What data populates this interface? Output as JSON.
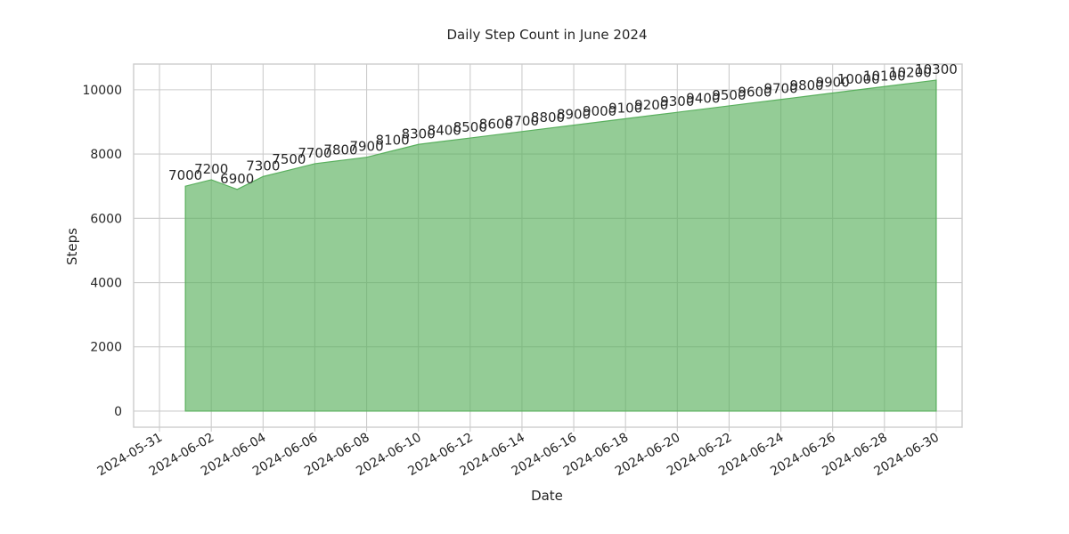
{
  "chart_data": {
    "type": "area",
    "title": "Daily Step Count in June 2024",
    "xlabel": "Date",
    "ylabel": "Steps",
    "x": [
      "2024-06-01",
      "2024-06-02",
      "2024-06-03",
      "2024-06-04",
      "2024-06-05",
      "2024-06-06",
      "2024-06-07",
      "2024-06-08",
      "2024-06-09",
      "2024-06-10",
      "2024-06-11",
      "2024-06-12",
      "2024-06-13",
      "2024-06-14",
      "2024-06-15",
      "2024-06-16",
      "2024-06-17",
      "2024-06-18",
      "2024-06-19",
      "2024-06-20",
      "2024-06-21",
      "2024-06-22",
      "2024-06-23",
      "2024-06-24",
      "2024-06-25",
      "2024-06-26",
      "2024-06-27",
      "2024-06-28",
      "2024-06-29",
      "2024-06-30"
    ],
    "values": [
      7000,
      7200,
      6900,
      7300,
      7500,
      7700,
      7800,
      7900,
      8100,
      8300,
      8400,
      8500,
      8600,
      8700,
      8800,
      8900,
      9000,
      9100,
      9200,
      9300,
      9400,
      9500,
      9600,
      9700,
      9800,
      9900,
      10000,
      10100,
      10200,
      10300
    ],
    "xlim": [
      "2024-05-30",
      "2024-07-01"
    ],
    "ylim": [
      -500,
      10800
    ],
    "x_ticks": [
      "2024-05-31",
      "2024-06-02",
      "2024-06-04",
      "2024-06-06",
      "2024-06-08",
      "2024-06-10",
      "2024-06-12",
      "2024-06-14",
      "2024-06-16",
      "2024-06-18",
      "2024-06-20",
      "2024-06-22",
      "2024-06-24",
      "2024-06-26",
      "2024-06-28",
      "2024-06-30"
    ],
    "y_ticks": [
      0,
      2000,
      4000,
      6000,
      8000,
      10000
    ],
    "grid": true,
    "fill_color": "#5ab05e",
    "fill_opacity": 0.65,
    "edge_color": "#5ab05e"
  }
}
